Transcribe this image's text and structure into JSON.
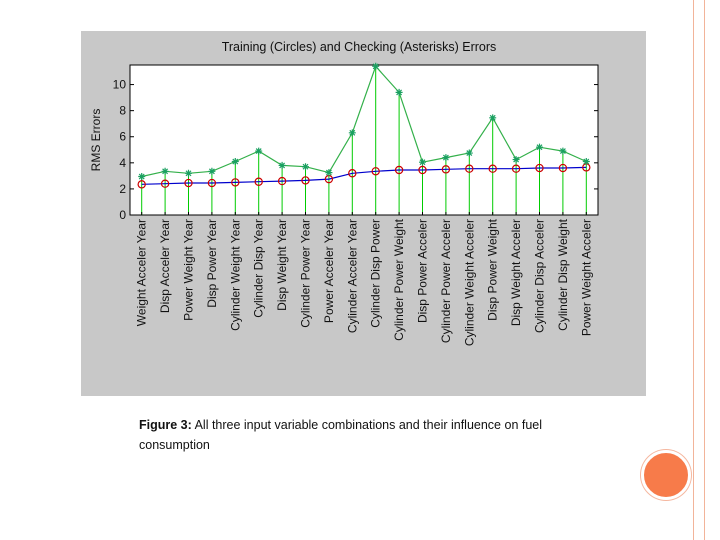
{
  "caption": {
    "label": "Figure 3:",
    "text": " All three input variable combinations and their influence on fuel consumption"
  },
  "colors": {
    "panel": "#c8c8c8",
    "training_line": "#0000cc",
    "training_marker": "#cc0000",
    "checking_line": "#33b04a",
    "checking_marker": "#1aa060",
    "stem": "#00cc00",
    "accent": "#f77b4a"
  },
  "chart_data": {
    "type": "line",
    "title": "Training (Circles) and Checking (Asterisks) Errors",
    "xlabel": "",
    "ylabel": "RMS Errors",
    "ylim": [
      0,
      11.5
    ],
    "yticks": [
      0,
      2,
      4,
      6,
      8,
      10
    ],
    "grid": false,
    "categories": [
      "Weight Acceler Year",
      "Disp Acceler Year",
      "Power Weight Year",
      "Disp Power Year",
      "Cylinder Weight Year",
      "Cylinder Disp Year",
      "Disp Weight Year",
      "Cylinder Power Year",
      "Power Acceler Year",
      "Cylinder Acceler Year",
      "Cylinder Disp Power",
      "Cylinder Power Weight",
      "Disp Power Acceler",
      "Cylinder Power Acceler",
      "Cylinder Weight Acceler",
      "Disp Power Weight",
      "Disp Weight Acceler",
      "Cylinder Disp Acceler",
      "Cylinder Disp Weight",
      "Power Weight Acceler"
    ],
    "series": [
      {
        "name": "Training",
        "marker": "circle",
        "values": [
          2.35,
          2.4,
          2.45,
          2.45,
          2.5,
          2.55,
          2.6,
          2.65,
          2.75,
          3.2,
          3.35,
          3.45,
          3.45,
          3.5,
          3.55,
          3.55,
          3.55,
          3.6,
          3.6,
          3.65
        ]
      },
      {
        "name": "Checking",
        "marker": "asterisk",
        "values": [
          2.95,
          3.35,
          3.2,
          3.35,
          4.1,
          4.9,
          3.8,
          3.7,
          3.25,
          6.3,
          11.4,
          9.4,
          4.05,
          4.4,
          4.75,
          7.45,
          4.25,
          5.2,
          4.9,
          4.1
        ]
      }
    ]
  }
}
